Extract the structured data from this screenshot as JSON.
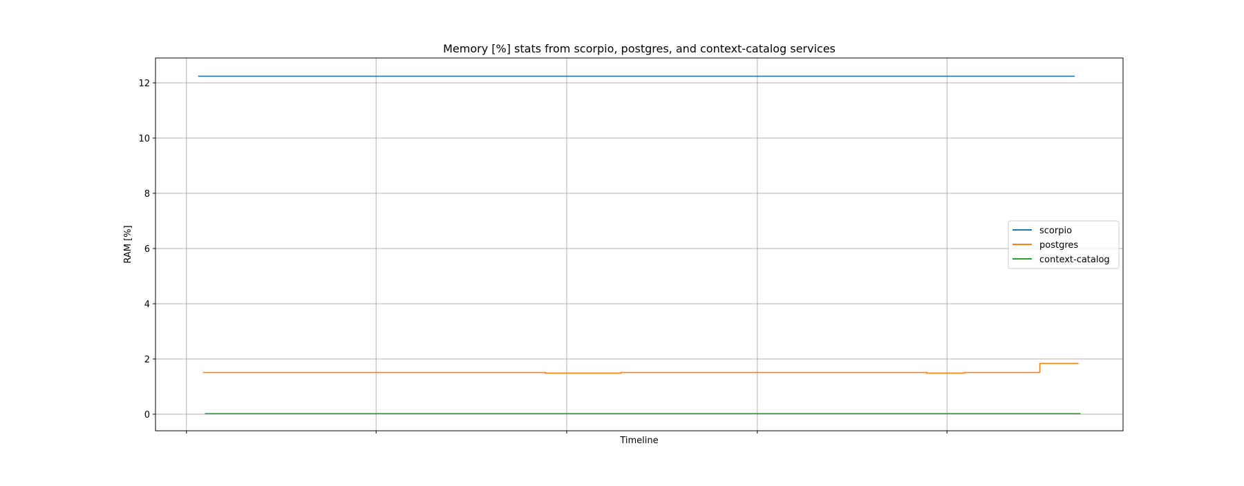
{
  "chart_data": {
    "type": "line",
    "title": "Memory [%] stats from scorpio, postgres, and context-catalog services",
    "xlabel": "Timeline",
    "ylabel": "RAM [%]",
    "xlim": [
      0,
      100
    ],
    "ylim": [
      -0.6,
      12.9
    ],
    "y_ticks": [
      0,
      2,
      4,
      6,
      8,
      10,
      12
    ],
    "y_tick_labels": [
      "0",
      "2",
      "4",
      "6",
      "8",
      "10",
      "12"
    ],
    "x_tick_labels": [],
    "x_gridlines": [
      3.2,
      22.8,
      42.5,
      62.2,
      81.8
    ],
    "grid": true,
    "legend_position": "center-right",
    "series": [
      {
        "name": "scorpio",
        "color": "#1f77b4",
        "step": true,
        "points": [
          [
            4.4,
            12.24
          ],
          [
            95.0,
            12.24
          ]
        ]
      },
      {
        "name": "postgres",
        "color": "#ff7f0e",
        "step": true,
        "points": [
          [
            4.9,
            1.51
          ],
          [
            40.3,
            1.51
          ],
          [
            40.3,
            1.49
          ],
          [
            48.1,
            1.49
          ],
          [
            48.1,
            1.51
          ],
          [
            79.7,
            1.51
          ],
          [
            79.7,
            1.49
          ],
          [
            83.6,
            1.49
          ],
          [
            83.6,
            1.51
          ],
          [
            91.4,
            1.51
          ],
          [
            91.4,
            1.84
          ],
          [
            95.4,
            1.84
          ]
        ]
      },
      {
        "name": "context-catalog",
        "color": "#2ca02c",
        "step": true,
        "points": [
          [
            5.1,
            0.02
          ],
          [
            95.6,
            0.02
          ]
        ]
      }
    ]
  }
}
